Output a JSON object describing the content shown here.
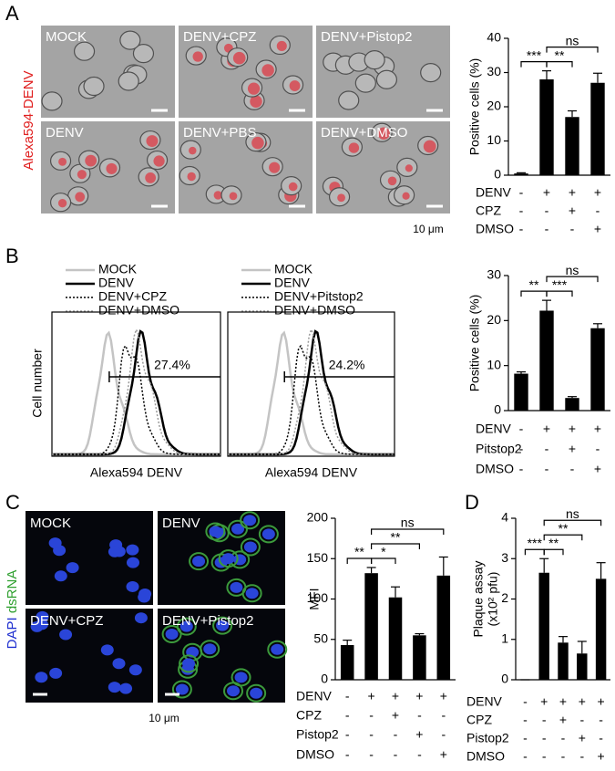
{
  "panel_labels": [
    "A",
    "B",
    "C",
    "D"
  ],
  "micrographs_a": {
    "side_label": "Alexa594-DENV",
    "images": [
      "MOCK",
      "DENV+CPZ",
      "DENV+Pistop2",
      "DENV",
      "DENV+PBS",
      "DENV+DMSO"
    ],
    "scale": "10 μm"
  },
  "flow_b": {
    "y_label": "Cell number",
    "plots": [
      {
        "legend": [
          "MOCK",
          "DENV",
          "DENV+CPZ",
          "DENV+DMSO"
        ],
        "gate_label": "27.4%",
        "x_label": "Alexa594 DENV"
      },
      {
        "legend": [
          "MOCK",
          "DENV",
          "DENV+Pitstop2",
          "DENV+DMSO"
        ],
        "gate_label": "24.2%",
        "x_label": "Alexa594 DENV"
      }
    ]
  },
  "micrographs_c": {
    "side_label_1": "DAPI",
    "side_label_2": "dsRNA",
    "images": [
      "MOCK",
      "DENV",
      "DENV+CPZ",
      "DENV+Pistop2"
    ],
    "scale": "10 μm"
  },
  "chart_data": [
    {
      "type": "bar",
      "ylabel": [
        "Positive cells (%)"
      ],
      "ylim": [
        0,
        40
      ],
      "yticks": [
        0,
        10,
        20,
        30,
        40
      ],
      "color": "#000000",
      "values": [
        0.5,
        28,
        17,
        27
      ],
      "errors": [
        0.2,
        2.5,
        1.8,
        2.8
      ],
      "treatments": [
        {
          "name": "DENV",
          "signs": [
            "-",
            "+",
            "+",
            "+"
          ]
        },
        {
          "name": "CPZ",
          "signs": [
            "-",
            "-",
            "+",
            "-"
          ]
        },
        {
          "name": "DMSO",
          "signs": [
            "-",
            "-",
            "-",
            "+"
          ]
        }
      ],
      "significance": [
        {
          "from": 0,
          "to": 1,
          "label": "***"
        },
        {
          "from": 1,
          "to": 2,
          "label": "**"
        },
        {
          "from": 1,
          "to": 3,
          "label": "ns"
        }
      ]
    },
    {
      "type": "bar",
      "ylabel": [
        "Positive cells (%)"
      ],
      "ylim": [
        0,
        30
      ],
      "yticks": [
        0,
        10,
        20,
        30
      ],
      "color": "#000000",
      "values": [
        8.2,
        22.2,
        2.8,
        18.3
      ],
      "errors": [
        0.4,
        2.3,
        0.3,
        1.0
      ],
      "treatments": [
        {
          "name": "DENV",
          "signs": [
            "-",
            "+",
            "+",
            "+"
          ]
        },
        {
          "name": "Pitstop2",
          "signs": [
            "-",
            "-",
            "+",
            "-"
          ]
        },
        {
          "name": "DMSO",
          "signs": [
            "-",
            "-",
            "-",
            "+"
          ]
        }
      ],
      "significance": [
        {
          "from": 0,
          "to": 1,
          "label": "**"
        },
        {
          "from": 1,
          "to": 2,
          "label": "***"
        },
        {
          "from": 1,
          "to": 3,
          "label": "ns"
        }
      ]
    },
    {
      "type": "bar",
      "ylabel": [
        "MFI"
      ],
      "ylim": [
        0,
        200
      ],
      "yticks": [
        0,
        50,
        100,
        150,
        200
      ],
      "color": "#000000",
      "values": [
        43,
        132,
        102,
        55,
        129
      ],
      "errors": [
        6,
        7,
        13,
        2,
        23
      ],
      "treatments": [
        {
          "name": "DENV",
          "signs": [
            "-",
            "+",
            "+",
            "+",
            "+"
          ]
        },
        {
          "name": "CPZ",
          "signs": [
            "-",
            "-",
            "+",
            "-",
            "-"
          ]
        },
        {
          "name": "Pistop2",
          "signs": [
            "-",
            "-",
            "-",
            "+",
            "-"
          ]
        },
        {
          "name": "DMSO",
          "signs": [
            "-",
            "-",
            "-",
            "-",
            "+"
          ]
        }
      ],
      "significance": [
        {
          "from": 0,
          "to": 1,
          "label": "**"
        },
        {
          "from": 1,
          "to": 2,
          "label": "*"
        },
        {
          "from": 1,
          "to": 3,
          "label": "**"
        },
        {
          "from": 1,
          "to": 4,
          "label": "ns"
        }
      ]
    },
    {
      "type": "bar",
      "ylabel": [
        "Plaque assay",
        "(x10² pfu)"
      ],
      "ylim": [
        0,
        4
      ],
      "yticks": [
        0,
        1,
        2,
        3,
        4
      ],
      "color": "#000000",
      "values": [
        0,
        2.65,
        0.92,
        0.65,
        2.5
      ],
      "errors": [
        0,
        0.35,
        0.15,
        0.3,
        0.4
      ],
      "treatments": [
        {
          "name": "DENV",
          "signs": [
            "-",
            "+",
            "+",
            "+",
            "+"
          ]
        },
        {
          "name": "CPZ",
          "signs": [
            "-",
            "-",
            "+",
            "-",
            "-"
          ]
        },
        {
          "name": "Pistop2",
          "signs": [
            "-",
            "-",
            "-",
            "+",
            "-"
          ]
        },
        {
          "name": "DMSO",
          "signs": [
            "-",
            "-",
            "-",
            "-",
            "+"
          ]
        }
      ],
      "significance": [
        {
          "from": 0,
          "to": 1,
          "label": "***"
        },
        {
          "from": 1,
          "to": 2,
          "label": "**"
        },
        {
          "from": 1,
          "to": 3,
          "label": "**"
        },
        {
          "from": 1,
          "to": 4,
          "label": "ns"
        }
      ]
    }
  ]
}
